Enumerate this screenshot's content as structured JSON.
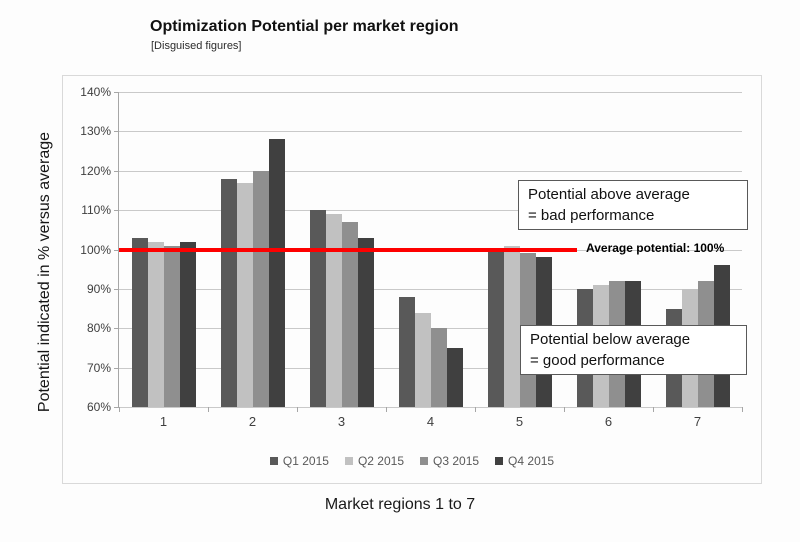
{
  "header": {
    "title": "Optimization Potential per market region",
    "subtitle": "[Disguised figures]"
  },
  "chart_data": {
    "type": "bar",
    "title": "Optimization Potential per market region",
    "subtitle": "[Disguised figures]",
    "categories": [
      "1",
      "2",
      "3",
      "4",
      "5",
      "6",
      "7"
    ],
    "series": [
      {
        "name": "Q1 2015",
        "color": "#595959",
        "values": [
          103,
          118,
          110,
          88,
          100,
          90,
          85
        ]
      },
      {
        "name": "Q2 2015",
        "color": "#c1c1c1",
        "values": [
          102,
          117,
          109,
          84,
          101,
          91,
          90
        ]
      },
      {
        "name": "Q3 2015",
        "color": "#8f8f8f",
        "values": [
          101,
          120,
          107,
          80,
          99,
          92,
          92
        ]
      },
      {
        "name": "Q4 2015",
        "color": "#404040",
        "values": [
          102,
          128,
          103,
          75,
          98,
          92,
          96
        ]
      }
    ],
    "ylim": [
      60,
      140
    ],
    "y_ticks": [
      "140%",
      "130%",
      "120%",
      "110%",
      "100%",
      "90%",
      "80%",
      "70%",
      "60%"
    ],
    "ylabel": "Potential indicated in % versus average",
    "xlabel": "Market regions 1 to 7",
    "grid": "horizontal",
    "legend_position": "bottom",
    "reference_line": {
      "value": 100,
      "color": "#fe0000",
      "label": "Average potential: 100%"
    }
  },
  "annotations": {
    "above": {
      "line1": "Potential above average",
      "line2": "= bad performance"
    },
    "below": {
      "line1": "Potential below average",
      "line2": "= good performance"
    }
  }
}
